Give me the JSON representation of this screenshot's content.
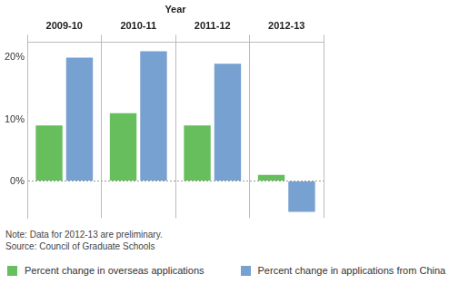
{
  "chart_data": {
    "type": "bar",
    "x_label": "Year",
    "categories": [
      "2009-10",
      "2010-11",
      "2011-12",
      "2012-13"
    ],
    "series": [
      {
        "name": "Percent change in overseas applications",
        "color": "#66bf5c",
        "values": [
          9,
          11,
          9,
          1
        ]
      },
      {
        "name": "Percent change in applications from China",
        "color": "#76a1d0",
        "values": [
          20,
          21,
          19,
          -5
        ]
      }
    ],
    "ylim": [
      -6,
      22.5
    ],
    "yticks": [
      {
        "value": 0,
        "label": "0%"
      },
      {
        "value": 10,
        "label": "10%"
      },
      {
        "value": 20,
        "label": "20%"
      }
    ],
    "grid": true,
    "annotations": [
      "Note: Data for 2012-13 are preliminary.",
      "Source: Council of Graduate Schools"
    ]
  }
}
